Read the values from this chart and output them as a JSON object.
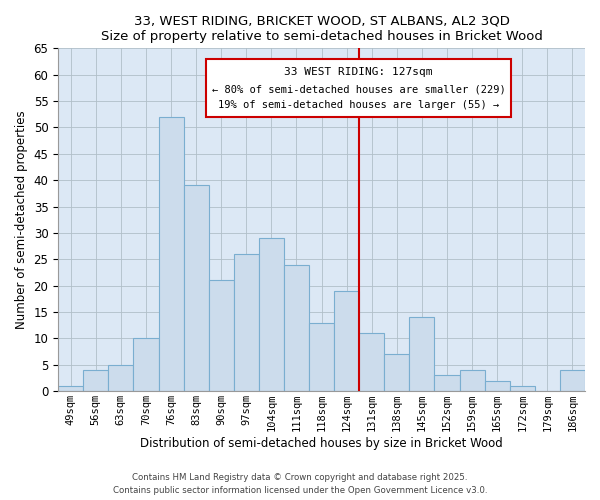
{
  "title": "33, WEST RIDING, BRICKET WOOD, ST ALBANS, AL2 3QD",
  "subtitle": "Size of property relative to semi-detached houses in Bricket Wood",
  "xlabel": "Distribution of semi-detached houses by size in Bricket Wood",
  "ylabel": "Number of semi-detached properties",
  "categories": [
    "49sqm",
    "56sqm",
    "63sqm",
    "70sqm",
    "76sqm",
    "83sqm",
    "90sqm",
    "97sqm",
    "104sqm",
    "111sqm",
    "118sqm",
    "124sqm",
    "131sqm",
    "138sqm",
    "145sqm",
    "152sqm",
    "159sqm",
    "165sqm",
    "172sqm",
    "179sqm",
    "186sqm"
  ],
  "values": [
    1,
    4,
    5,
    10,
    52,
    39,
    21,
    26,
    29,
    24,
    13,
    19,
    11,
    7,
    14,
    3,
    4,
    2,
    1,
    0,
    4
  ],
  "bar_color": "#ccdcec",
  "bar_edge_color": "#7aaed0",
  "background_color": "#ffffff",
  "plot_bg_color": "#dce8f5",
  "grid_color": "#b0bfc8",
  "vline_color": "#cc0000",
  "annotation_title": "33 WEST RIDING: 127sqm",
  "annotation_line1": "← 80% of semi-detached houses are smaller (229)",
  "annotation_line2": "19% of semi-detached houses are larger (55) →",
  "ylim": [
    0,
    65
  ],
  "yticks": [
    0,
    5,
    10,
    15,
    20,
    25,
    30,
    35,
    40,
    45,
    50,
    55,
    60,
    65
  ],
  "footer_line1": "Contains HM Land Registry data © Crown copyright and database right 2025.",
  "footer_line2": "Contains public sector information licensed under the Open Government Licence v3.0.",
  "vline_bar_index": 11
}
